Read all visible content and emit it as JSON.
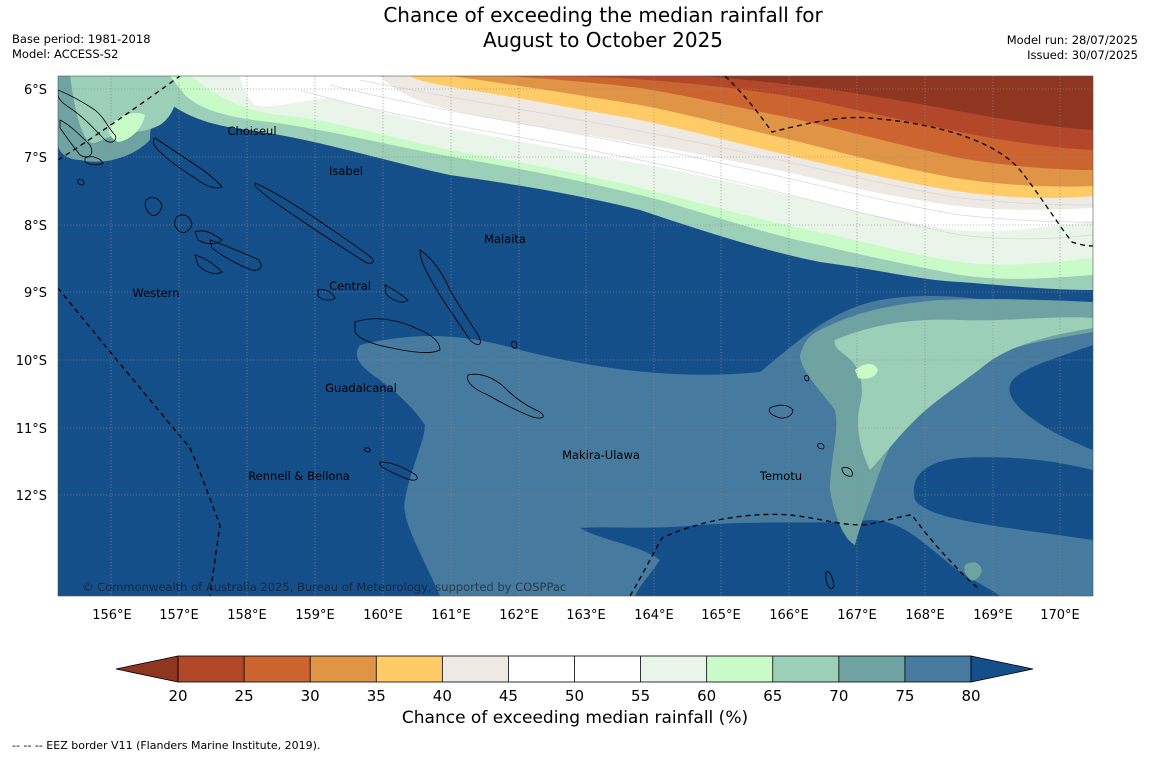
{
  "title": {
    "line1": "Chance of exceeding the median rainfall for",
    "line2": "August to October 2025"
  },
  "meta": {
    "base_period": "Base period: 1981-2018",
    "model": "Model: ACCESS-S2",
    "model_run": "Model run: 28/07/2025",
    "issued": "Issued: 30/07/2025"
  },
  "map": {
    "lat_labels": [
      "6°S",
      "7°S",
      "8°S",
      "9°S",
      "10°S",
      "11°S",
      "12°S"
    ],
    "lon_labels": [
      "156°E",
      "157°E",
      "158°E",
      "159°E",
      "160°E",
      "161°E",
      "162°E",
      "163°E",
      "164°E",
      "165°E",
      "166°E",
      "167°E",
      "168°E",
      "169°E",
      "170°E"
    ],
    "regions": [
      "Choiseul",
      "Isabel",
      "Malaita",
      "Western",
      "Central",
      "Guadalcanal",
      "Makira-Ulawa",
      "Rennell & Bellona",
      "Temotu"
    ],
    "copyright": "© Commonwealth of Australia 2025, Bureau of Meteorology, supported by COSPPac"
  },
  "legend": {
    "ticks": [
      "20",
      "25",
      "30",
      "35",
      "40",
      "45",
      "50",
      "55",
      "60",
      "65",
      "70",
      "75",
      "80"
    ],
    "colors": [
      "#b3472a",
      "#cc6430",
      "#e09446",
      "#fecb67",
      "#efe9e4",
      "#ffffff",
      "#ffffff",
      "#e8f5e8",
      "#c9fbc9",
      "#9ccfb7",
      "#6fa3a2",
      "#467a9e"
    ],
    "under_color": "#8e3620",
    "over_color": "#154f8a",
    "label": "Chance of exceeding median rainfall (%)"
  },
  "footer": "--  --  -- EEZ border V11 (Flanders Marine Institute, 2019)."
}
